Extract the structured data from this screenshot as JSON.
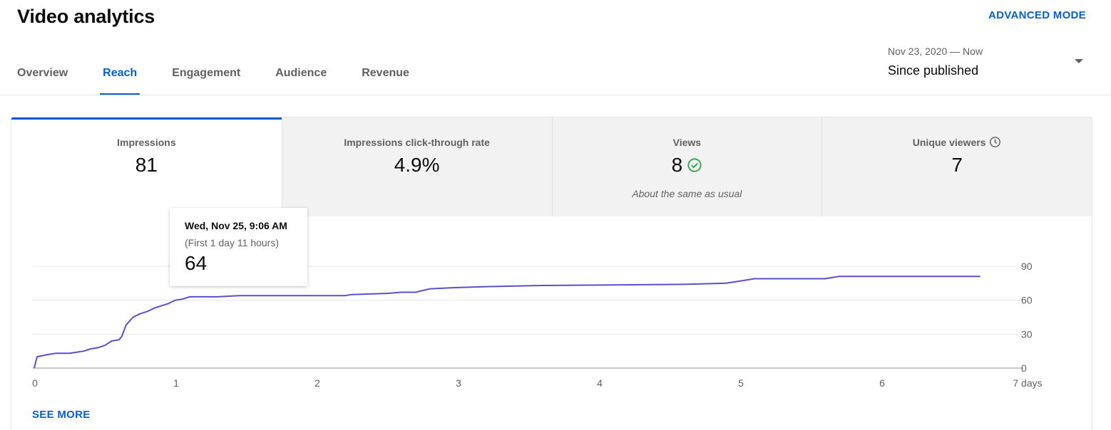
{
  "header": {
    "title": "Video analytics",
    "advanced_mode_label": "ADVANCED MODE"
  },
  "tabs": [
    {
      "label": "Overview",
      "active": false
    },
    {
      "label": "Reach",
      "active": true
    },
    {
      "label": "Engagement",
      "active": false
    },
    {
      "label": "Audience",
      "active": false
    },
    {
      "label": "Revenue",
      "active": false
    }
  ],
  "date_range": {
    "range": "Nov 23, 2020 — Now",
    "label": "Since published",
    "icon": "dropdown-caret-icon"
  },
  "metrics": [
    {
      "label": "Impressions",
      "value": "81",
      "note": "",
      "active": true
    },
    {
      "label": "Impressions click-through rate",
      "value": "4.9%",
      "note": "",
      "active": false
    },
    {
      "label": "Views",
      "value": "8",
      "note": "About the same as usual",
      "active": false,
      "icon": "check-circle-icon"
    },
    {
      "label": "Unique viewers",
      "value": "7",
      "note": "",
      "active": false,
      "icon": "clock-icon"
    }
  ],
  "tooltip": {
    "date": "Wed, Nov 25, 9:06 AM",
    "subtitle": "(First 1 day 11 hours)",
    "value": "64"
  },
  "see_more_label": "SEE MORE",
  "colors": {
    "accent": "#065fd4",
    "line": "#5a4fcf",
    "check": "#2ba640",
    "muted": "#606060"
  },
  "chart_data": {
    "type": "line",
    "title": "",
    "xlabel": "",
    "ylabel": "",
    "xlim": [
      0,
      7
    ],
    "ylim": [
      0,
      90
    ],
    "x_ticks": [
      "0",
      "1",
      "2",
      "3",
      "4",
      "5",
      "6",
      "7 days"
    ],
    "y_ticks": [
      "0",
      "30",
      "60",
      "90"
    ],
    "grid": true,
    "series": [
      {
        "name": "",
        "points": [
          [
            0,
            0
          ],
          [
            0.02,
            10
          ],
          [
            0.1,
            12
          ],
          [
            0.15,
            13
          ],
          [
            0.25,
            13
          ],
          [
            0.3,
            14
          ],
          [
            0.35,
            15
          ],
          [
            0.4,
            17
          ],
          [
            0.45,
            18
          ],
          [
            0.5,
            20
          ],
          [
            0.55,
            24
          ],
          [
            0.6,
            25
          ],
          [
            0.62,
            28
          ],
          [
            0.65,
            38
          ],
          [
            0.7,
            45
          ],
          [
            0.75,
            48
          ],
          [
            0.8,
            50
          ],
          [
            0.85,
            53
          ],
          [
            0.9,
            55
          ],
          [
            0.95,
            57
          ],
          [
            1.0,
            60
          ],
          [
            1.05,
            61
          ],
          [
            1.1,
            63
          ],
          [
            1.3,
            63
          ],
          [
            1.45,
            64
          ],
          [
            2.2,
            64
          ],
          [
            2.25,
            65
          ],
          [
            2.5,
            66
          ],
          [
            2.6,
            67
          ],
          [
            2.7,
            67
          ],
          [
            2.8,
            70
          ],
          [
            2.95,
            71
          ],
          [
            3.2,
            72
          ],
          [
            3.6,
            73
          ],
          [
            4.6,
            74
          ],
          [
            4.9,
            75
          ],
          [
            5.0,
            77
          ],
          [
            5.1,
            79
          ],
          [
            5.6,
            79
          ],
          [
            5.65,
            80
          ],
          [
            5.7,
            81
          ],
          [
            6.7,
            81
          ]
        ]
      }
    ]
  }
}
